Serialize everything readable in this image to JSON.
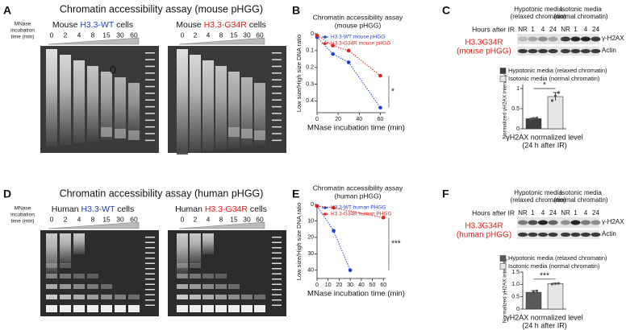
{
  "panel_labels": [
    "A",
    "B",
    "C",
    "D",
    "E",
    "F"
  ],
  "gel_panels": [
    {
      "title": "Chromatin accessibility assay (mouse pHGG)",
      "time_label": [
        "MNase",
        "incubation",
        "time (min)"
      ],
      "timepoints": [
        "0",
        "2",
        "4",
        "8",
        "15",
        "30",
        "60"
      ],
      "groups": [
        {
          "prefix": "Mouse ",
          "genotype": "H3.3-WT",
          "suffix": " cells",
          "color": "#1f3fbf"
        },
        {
          "prefix": "Mouse ",
          "genotype": "H3.3-G34R",
          "suffix": " cells",
          "color": "#e0201b"
        }
      ],
      "annotation": "0"
    },
    {
      "title": "Chromatin accessibility assay (human pHGG)",
      "time_label": [
        "MNase",
        "incubation",
        "time (min)"
      ],
      "timepoints": [
        "0",
        "2",
        "4",
        "8",
        "15",
        "30",
        "60"
      ],
      "groups": [
        {
          "prefix": "Human ",
          "genotype": "H3.3-WT",
          "suffix": " cells",
          "color": "#1f3fbf"
        },
        {
          "prefix": "Human ",
          "genotype": "H3.3-G34R",
          "suffix": " cells",
          "color": "#e0201b"
        }
      ]
    }
  ],
  "westerns": [
    {
      "conditions": [
        [
          "Hypotonic media",
          "(relaxed chromatin)"
        ],
        [
          "Isotonic media",
          "(normal chromatin)"
        ]
      ],
      "hours_label": "Hours after IR",
      "lanes": [
        "NR",
        "1",
        "4",
        "24"
      ],
      "cell_line": [
        "H3.3G34R",
        "(mouse pHGG)"
      ],
      "bands": [
        "γ-H2AX",
        "Actin"
      ]
    },
    {
      "conditions": [
        [
          "Hypotonic media",
          "(relaxed chromatin)"
        ],
        [
          "Isotonic media",
          "(normal chromatin)"
        ]
      ],
      "hours_label": "Hours after IR",
      "lanes": [
        "NR",
        "1",
        "4",
        "24"
      ],
      "cell_line": [
        "H3.3G34R",
        "(human pHGG)"
      ],
      "bands": [
        "γ-H2AX",
        "Actin"
      ]
    }
  ],
  "chart_data": [
    {
      "type": "line",
      "title": [
        "Chromatin accessibility assay",
        "(mouse pHGG)"
      ],
      "xlabel": "MNase incubation time (min)",
      "ylabel": "Low size/High size DNA ratio",
      "xlim": [
        0,
        65
      ],
      "ylim": [
        0,
        0.47
      ],
      "y_inverted": true,
      "xticks": [
        0,
        20,
        40,
        60
      ],
      "yticks": [
        0,
        0.1,
        0.2,
        0.3,
        0.4
      ],
      "series": [
        {
          "name": "H3.3-WT mouse pHGG",
          "color": "#1f3fd6",
          "x": [
            0,
            15,
            30,
            60
          ],
          "values": [
            0.02,
            0.12,
            0.17,
            0.44
          ]
        },
        {
          "name": "H3.3-G34R mouse pHGG",
          "color": "#e0201b",
          "x": [
            0,
            15,
            30,
            60
          ],
          "values": [
            0.01,
            0.07,
            0.1,
            0.25
          ]
        }
      ],
      "annotation": "*",
      "legend": "upper right"
    },
    {
      "type": "bar",
      "ylabel": "Normalized γH2AX intensity",
      "xlabel": [
        "γH2AX normalized level",
        "(24 h after IR)"
      ],
      "ylim": [
        0,
        1.1
      ],
      "yticks": [
        0,
        0.5,
        1
      ],
      "series": [
        {
          "name": "Hypotonic media (relaxed chromatin)",
          "color": "#3d3d3d",
          "values": [
            0.25
          ],
          "errors": [
            0.02
          ],
          "points": [
            0.24,
            0.26,
            0.27
          ]
        },
        {
          "name": "Isotonic media (normal chromatin)",
          "color": "#e6e6e6",
          "values": [
            0.8
          ],
          "errors": [
            0.1
          ],
          "points": [
            0.7,
            0.82,
            0.9
          ]
        }
      ],
      "annotation": "*"
    },
    {
      "type": "line",
      "title": [
        "Chromatin accessibility assay",
        "(human pHGG)"
      ],
      "xlabel": "MNase incubation time (min)",
      "ylabel": "Low size/High size DNA ratio",
      "xlim": [
        0,
        62
      ],
      "ylim": [
        0,
        45
      ],
      "y_inverted": true,
      "xticks": [
        0,
        10,
        20,
        30,
        40,
        50,
        60
      ],
      "yticks": [
        0,
        10,
        20,
        30,
        40
      ],
      "series": [
        {
          "name": "H3.3-WT human PHGG",
          "color": "#1f3fd6",
          "x": [
            0,
            15,
            30
          ],
          "values": [
            1,
            16,
            40
          ]
        },
        {
          "name": "H3.3-G34R human PHGG",
          "color": "#e0201b",
          "x": [
            0,
            15,
            60
          ],
          "values": [
            1,
            2,
            8
          ]
        }
      ],
      "annotation": "***",
      "legend": "upper right"
    },
    {
      "type": "bar",
      "ylabel": "Normalized γH2AX intensity",
      "xlabel": [
        "γH2AX normalized level",
        "(24 h after IR)"
      ],
      "ylim": [
        0,
        1.5
      ],
      "yticks": [
        0,
        0.5,
        {
          "value": 1,
          "label": "1.0"
        },
        1.5
      ],
      "series": [
        {
          "name": "Hypotonic media (relaxed chromatin)",
          "color": "#5a5a5a",
          "values": [
            0.68
          ],
          "errors": [
            0.07
          ],
          "points": [
            0.6,
            0.7,
            0.74
          ]
        },
        {
          "name": "Isotonic media (normal chromatin)",
          "color": "#e6e6e6",
          "values": [
            1.03
          ],
          "errors": [
            0.02
          ],
          "points": [
            1.01,
            1.03,
            1.04
          ]
        }
      ],
      "annotation": "***"
    }
  ]
}
